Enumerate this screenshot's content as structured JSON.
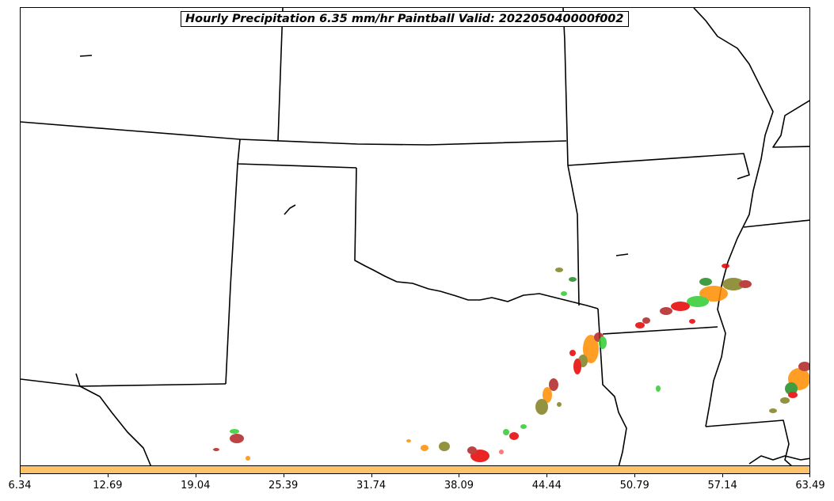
{
  "title": "Hourly Precipitation 6.35 mm/hr Paintball Valid: 202205040000f002",
  "colorbar": {
    "color": "#ffc266",
    "ticks": [
      "6.34",
      "12.69",
      "19.04",
      "25.39",
      "31.74",
      "38.09",
      "44.44",
      "50.79",
      "57.14",
      "63.49"
    ]
  },
  "member_colors": [
    "#e60000",
    "#b22222",
    "#2ecc2e",
    "#ff8c00",
    "#808020",
    "#ff6060",
    "#228b22",
    "#d2691e"
  ]
}
